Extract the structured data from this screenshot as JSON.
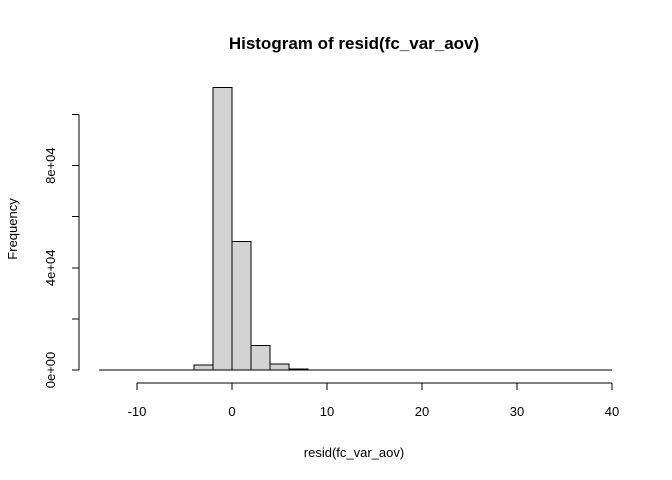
{
  "chart_data": {
    "type": "bar",
    "title": "Histogram of resid(fc_var_aov)",
    "xlabel": "resid(fc_var_aov)",
    "ylabel": "Frequency",
    "xlim": [
      -14,
      40
    ],
    "ylim": [
      0,
      110000
    ],
    "x_ticks": [
      -10,
      0,
      10,
      20,
      30,
      40
    ],
    "x_tick_labels": [
      "-10",
      "0",
      "10",
      "20",
      "30",
      "40"
    ],
    "y_ticks": [
      0,
      20000,
      40000,
      60000,
      80000,
      100000
    ],
    "y_tick_labels": [
      "0e+00",
      "",
      "4e+04",
      "",
      "8e+04",
      ""
    ],
    "grid": false,
    "bar_fill": "#d3d3d3",
    "bar_stroke": "#000000",
    "bins": [
      {
        "start": -14,
        "end": -12,
        "value": 0
      },
      {
        "start": -12,
        "end": -10,
        "value": 0
      },
      {
        "start": -10,
        "end": -8,
        "value": 0
      },
      {
        "start": -8,
        "end": -6,
        "value": 0
      },
      {
        "start": -6,
        "end": -4,
        "value": 0
      },
      {
        "start": -4,
        "end": -2,
        "value": 2000
      },
      {
        "start": -2,
        "end": 0,
        "value": 110500
      },
      {
        "start": 0,
        "end": 2,
        "value": 50300
      },
      {
        "start": 2,
        "end": 4,
        "value": 9600
      },
      {
        "start": 4,
        "end": 6,
        "value": 2400
      },
      {
        "start": 6,
        "end": 8,
        "value": 400
      },
      {
        "start": 8,
        "end": 10,
        "value": 0
      },
      {
        "start": 10,
        "end": 12,
        "value": 0
      },
      {
        "start": 12,
        "end": 14,
        "value": 0
      },
      {
        "start": 14,
        "end": 16,
        "value": 0
      },
      {
        "start": 16,
        "end": 18,
        "value": 0
      },
      {
        "start": 18,
        "end": 20,
        "value": 0
      },
      {
        "start": 20,
        "end": 22,
        "value": 0
      },
      {
        "start": 22,
        "end": 24,
        "value": 0
      },
      {
        "start": 24,
        "end": 26,
        "value": 0
      },
      {
        "start": 26,
        "end": 28,
        "value": 0
      },
      {
        "start": 28,
        "end": 30,
        "value": 0
      },
      {
        "start": 30,
        "end": 32,
        "value": 0
      },
      {
        "start": 32,
        "end": 34,
        "value": 0
      },
      {
        "start": 34,
        "end": 36,
        "value": 0
      },
      {
        "start": 36,
        "end": 38,
        "value": 0
      },
      {
        "start": 38,
        "end": 40,
        "value": 0
      }
    ]
  }
}
